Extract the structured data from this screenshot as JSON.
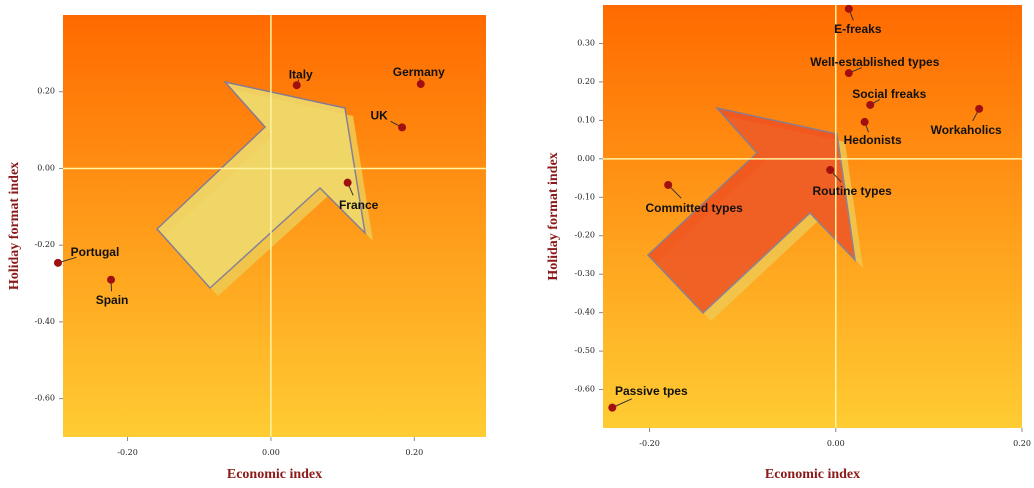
{
  "chart_data": [
    {
      "type": "scatter",
      "x_label": "Economic index",
      "y_label": "Holiday format index",
      "xlim": [
        -0.29,
        0.3
      ],
      "ylim": [
        -0.7,
        0.4
      ],
      "xticks": [
        {
          "value": -0.2,
          "label": "-0.20"
        },
        {
          "value": 0,
          "label": "0.00"
        },
        {
          "value": 0.2,
          "label": "0.20"
        }
      ],
      "yticks": [
        {
          "value": 0.2,
          "label": "0.20"
        },
        {
          "value": 0,
          "label": "0.00"
        },
        {
          "value": -0.2,
          "label": "-0.20"
        },
        {
          "value": -0.4,
          "label": "-0.40"
        },
        {
          "value": -0.6,
          "label": "-0.60"
        }
      ],
      "color": "#a01010",
      "labels": [
        "Italy",
        "Germany",
        "UK",
        "France",
        "Portugal",
        "Spain"
      ],
      "x": [
        0.036,
        0.209,
        0.183,
        0.107,
        -0.297,
        -0.223
      ],
      "values": [
        0.217,
        0.22,
        0.107,
        -0.037,
        -0.246,
        -0.29
      ]
    },
    {
      "type": "scatter",
      "x_label": "Economic index",
      "y_label": "Holiday format index",
      "xlim": [
        -0.25,
        0.2
      ],
      "ylim": [
        -0.7,
        0.4
      ],
      "xticks": [
        {
          "value": -0.2,
          "label": "-0.20"
        },
        {
          "value": 0,
          "label": "0.00"
        },
        {
          "value": 0.2,
          "label": "0.20"
        }
      ],
      "yticks": [
        {
          "value": 0.3,
          "label": "0.30"
        },
        {
          "value": 0.2,
          "label": "0.20"
        },
        {
          "value": 0.1,
          "label": "0.10"
        },
        {
          "value": 0,
          "label": "0.00"
        },
        {
          "value": -0.1,
          "label": "-0.10"
        },
        {
          "value": -0.2,
          "label": "-0.20"
        },
        {
          "value": -0.3,
          "label": "-0.30"
        },
        {
          "value": -0.4,
          "label": "-0.40"
        },
        {
          "value": -0.5,
          "label": "-0.50"
        },
        {
          "value": -0.6,
          "label": "-0.60"
        }
      ],
      "color": "#a01010",
      "labels": [
        "E-freaks",
        "Well-established types",
        "Social freaks",
        "Hedonists",
        "Workaholics",
        "Routine types",
        "Committed types",
        "Passive tpes"
      ],
      "x": [
        0.014,
        0.014,
        0.037,
        0.031,
        0.154,
        -0.006,
        -0.18,
        -0.24
      ],
      "values": [
        0.39,
        0.223,
        0.14,
        0.096,
        0.13,
        -0.029,
        -0.068,
        -0.647
      ]
    }
  ]
}
